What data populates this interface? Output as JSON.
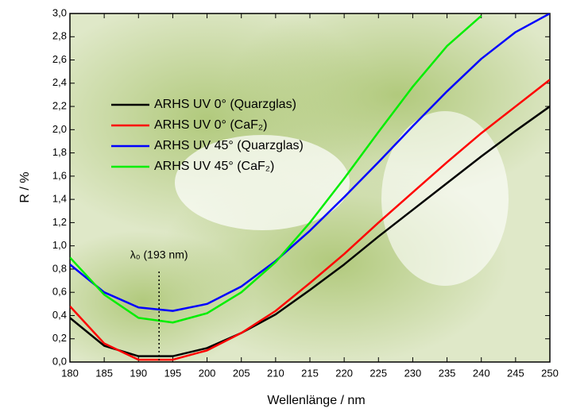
{
  "chart_data": {
    "type": "line",
    "x_label": "Wellenlänge / nm",
    "y_label": "R / %",
    "x": [
      180,
      185,
      190,
      195,
      200,
      205,
      210,
      215,
      220,
      225,
      230,
      235,
      240,
      245,
      250
    ],
    "series": [
      {
        "name": "ARHS UV 0° (Quarzglas)",
        "color": "#000000",
        "values": [
          0.38,
          0.14,
          0.05,
          0.05,
          0.12,
          0.25,
          0.41,
          0.62,
          0.84,
          1.08,
          1.31,
          1.54,
          1.77,
          1.99,
          2.2
        ]
      },
      {
        "name": "ARHS UV 0° (CaF₂)",
        "color": "#ff0000",
        "values": [
          0.48,
          0.16,
          0.02,
          0.02,
          0.1,
          0.25,
          0.44,
          0.68,
          0.93,
          1.2,
          1.46,
          1.72,
          1.97,
          2.2,
          2.43
        ]
      },
      {
        "name": "ARHS UV 45° (Quarzglas)",
        "color": "#0000ff",
        "values": [
          0.84,
          0.6,
          0.47,
          0.44,
          0.5,
          0.65,
          0.87,
          1.13,
          1.42,
          1.72,
          2.03,
          2.33,
          2.61,
          2.84,
          3.0
        ]
      },
      {
        "name": "ARHS UV 45° (CaF₂)",
        "color": "#00ee00",
        "values": [
          0.9,
          0.58,
          0.38,
          0.34,
          0.42,
          0.6,
          0.86,
          1.2,
          1.58,
          1.98,
          2.37,
          2.72,
          2.98,
          null,
          null
        ]
      }
    ],
    "annotation": {
      "text": "λ₀ (193 nm)",
      "x": 193
    },
    "xlim": [
      180,
      250
    ],
    "xticks": [
      180,
      185,
      190,
      195,
      200,
      205,
      210,
      215,
      220,
      225,
      230,
      235,
      240,
      245,
      250
    ],
    "ylim": [
      0,
      3
    ],
    "yticks": [
      {
        "value": 0,
        "label": "0,0"
      },
      {
        "value": 0.2,
        "label": "0,2"
      },
      {
        "value": 0.4,
        "label": "0,4"
      },
      {
        "value": 0.6,
        "label": "0,6"
      },
      {
        "value": 0.8,
        "label": "0,8"
      },
      {
        "value": 1,
        "label": "1,0"
      },
      {
        "value": 1.2,
        "label": "1,2"
      },
      {
        "value": 1.4,
        "label": "1,4"
      },
      {
        "value": 1.6,
        "label": "1,6"
      },
      {
        "value": 1.8,
        "label": "1,8"
      },
      {
        "value": 2,
        "label": "2,0"
      },
      {
        "value": 2.2,
        "label": "2,2"
      },
      {
        "value": 2.4,
        "label": "2,4"
      },
      {
        "value": 2.6,
        "label": "2,6"
      },
      {
        "value": 2.8,
        "label": "2,8"
      },
      {
        "value": 3,
        "label": "3,0"
      }
    ],
    "grid": false
  }
}
